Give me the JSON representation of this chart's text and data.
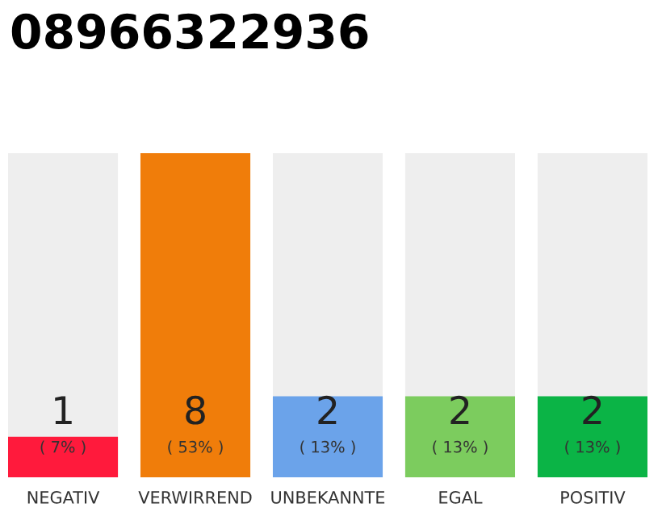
{
  "chart_data": {
    "type": "bar",
    "title": "08966322936",
    "categories": [
      "NEGATIV",
      "VERWIRREND",
      "UNBEKANNTE",
      "EGAL",
      "POSITIV"
    ],
    "values": [
      1,
      8,
      2,
      2,
      2
    ],
    "colors": [
      "#ff1a3c",
      "#f07d0a",
      "#6ba3ea",
      "#7ccc5e",
      "#0bb446"
    ],
    "ylim": [
      0,
      8
    ],
    "data_labels": true,
    "grid": false,
    "legend": false,
    "annotations": [
      {
        "text": "( 7% )",
        "x": "NEGATIV",
        "y": 0
      },
      {
        "text": "( 53% )",
        "x": "VERWIRREND",
        "y": 0
      },
      {
        "text": "( 13% )",
        "x": "UNBEKANNTE",
        "y": 0
      },
      {
        "text": "( 13% )",
        "x": "EGAL",
        "y": 0
      },
      {
        "text": "( 13% )",
        "x": "POSITIV",
        "y": 0
      }
    ]
  }
}
